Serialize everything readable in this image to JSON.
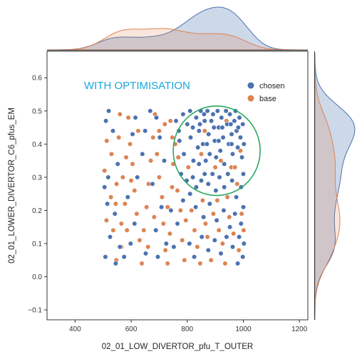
{
  "chart_data": {
    "type": "scatter",
    "xlabel": "02_01_LOW_DIVERTOR_pfu_T_OUTER",
    "ylabel": "02_01_LOWER_DIVERTOR_C6_pfus_EM",
    "xlim": [
      300,
      1230
    ],
    "ylim": [
      -0.13,
      0.68
    ],
    "xticks": [
      400,
      600,
      800,
      1000,
      1200
    ],
    "yticks": [
      -0.1,
      0.0,
      0.1,
      0.2,
      0.3,
      0.4,
      0.5,
      0.6
    ],
    "xtick_labels": [
      "400",
      "600",
      "800",
      "1000",
      "1200"
    ],
    "ytick_labels": [
      "−0.1",
      "0.0",
      "0.1",
      "0.2",
      "0.3",
      "0.4",
      "0.5",
      "0.6"
    ],
    "grid": false,
    "legend_position": "top-right",
    "annotation": {
      "text": "WITH OPTIMISATION",
      "color": "#1aa6dc"
    },
    "highlight_ellipse": {
      "cx": 905,
      "cy": 0.38,
      "rx": 155,
      "ry": 0.135,
      "color": "#2aa860"
    },
    "marginals": "kde",
    "series": [
      {
        "name": "chosen",
        "color": "#4c72b0",
        "points": [
          [
            520,
            0.5
          ],
          [
            510,
            0.47
          ],
          [
            535,
            0.44
          ],
          [
            505,
            0.27
          ],
          [
            518,
            0.3
          ],
          [
            552,
            0.34
          ],
          [
            515,
            0.22
          ],
          [
            542,
            0.19
          ],
          [
            525,
            0.12
          ],
          [
            560,
            0.09
          ],
          [
            508,
            0.06
          ],
          [
            545,
            0.04
          ],
          [
            575,
            0.06
          ],
          [
            598,
            0.1
          ],
          [
            612,
            0.16
          ],
          [
            588,
            0.24
          ],
          [
            622,
            0.3
          ],
          [
            640,
            0.37
          ],
          [
            650,
            0.44
          ],
          [
            605,
            0.43
          ],
          [
            668,
            0.5
          ],
          [
            690,
            0.48
          ],
          [
            702,
            0.42
          ],
          [
            718,
            0.35
          ],
          [
            676,
            0.28
          ],
          [
            708,
            0.21
          ],
          [
            742,
            0.2
          ],
          [
            688,
            0.14
          ],
          [
            725,
            0.1
          ],
          [
            652,
            0.07
          ],
          [
            695,
            0.06
          ],
          [
            752,
            0.09
          ],
          [
            765,
            0.16
          ],
          [
            785,
            0.23
          ],
          [
            778,
            0.31
          ],
          [
            760,
            0.47
          ],
          [
            772,
            0.41
          ],
          [
            788,
            0.37
          ],
          [
            800,
            0.46
          ],
          [
            810,
            0.5
          ],
          [
            812,
            0.42
          ],
          [
            822,
            0.35
          ],
          [
            832,
            0.48
          ],
          [
            842,
            0.44
          ],
          [
            848,
            0.5
          ],
          [
            856,
            0.4
          ],
          [
            862,
            0.47
          ],
          [
            872,
            0.5
          ],
          [
            876,
            0.43
          ],
          [
            880,
            0.37
          ],
          [
            886,
            0.47
          ],
          [
            892,
            0.49
          ],
          [
            898,
            0.41
          ],
          [
            903,
            0.36
          ],
          [
            908,
            0.5
          ],
          [
            912,
            0.45
          ],
          [
            918,
            0.38
          ],
          [
            922,
            0.48
          ],
          [
            928,
            0.42
          ],
          [
            932,
            0.34
          ],
          [
            938,
            0.5
          ],
          [
            942,
            0.46
          ],
          [
            948,
            0.4
          ],
          [
            952,
            0.49
          ],
          [
            958,
            0.43
          ],
          [
            962,
            0.37
          ],
          [
            968,
            0.47
          ],
          [
            972,
            0.5
          ],
          [
            976,
            0.44
          ],
          [
            980,
            0.39
          ],
          [
            986,
            0.48
          ],
          [
            990,
            0.42
          ],
          [
            995,
            0.36
          ],
          [
            998,
            0.46
          ],
          [
            1000,
            0.31
          ],
          [
            992,
            0.27
          ],
          [
            975,
            0.24
          ],
          [
            960,
            0.29
          ],
          [
            945,
            0.31
          ],
          [
            932,
            0.27
          ],
          [
            915,
            0.3
          ],
          [
            902,
            0.26
          ],
          [
            890,
            0.31
          ],
          [
            875,
            0.28
          ],
          [
            862,
            0.31
          ],
          [
            850,
            0.29
          ],
          [
            842,
            0.34
          ],
          [
            832,
            0.27
          ],
          [
            820,
            0.3
          ],
          [
            810,
            0.25
          ],
          [
            798,
            0.29
          ],
          [
            830,
            0.21
          ],
          [
            858,
            0.18
          ],
          [
            880,
            0.22
          ],
          [
            905,
            0.17
          ],
          [
            930,
            0.2
          ],
          [
            952,
            0.15
          ],
          [
            970,
            0.19
          ],
          [
            992,
            0.16
          ],
          [
            1000,
            0.21
          ],
          [
            985,
            0.12
          ],
          [
            962,
            0.09
          ],
          [
            940,
            0.12
          ],
          [
            920,
            0.07
          ],
          [
            898,
            0.11
          ],
          [
            875,
            0.08
          ],
          [
            852,
            0.12
          ],
          [
            825,
            0.06
          ],
          [
            808,
            0.1
          ],
          [
            998,
            0.06
          ],
          [
            980,
            0.04
          ],
          [
            1002,
            0.1
          ],
          [
            820,
            0.45
          ],
          [
            838,
            0.39
          ],
          [
            866,
            0.35
          ],
          [
            895,
            0.45
          ],
          [
            925,
            0.45
          ],
          [
            955,
            0.46
          ],
          [
            982,
            0.45
          ],
          [
            845,
            0.46
          ],
          [
            870,
            0.4
          ],
          [
            958,
            0.4
          ],
          [
            912,
            0.41
          ],
          [
            1002,
            0.4
          ],
          [
            860,
            0.49
          ],
          [
            785,
            0.49
          ],
          [
            770,
            0.44
          ],
          [
            615,
            0.48
          ]
        ]
      },
      {
        "name": "base",
        "color": "#dd8452",
        "points": [
          [
            513,
            0.41
          ],
          [
            530,
            0.37
          ],
          [
            505,
            0.32
          ],
          [
            548,
            0.28
          ],
          [
            512,
            0.17
          ],
          [
            528,
            0.24
          ],
          [
            536,
            0.14
          ],
          [
            547,
            0.05
          ],
          [
            565,
            0.16
          ],
          [
            578,
            0.22
          ],
          [
            570,
            0.3
          ],
          [
            582,
            0.36
          ],
          [
            556,
            0.42
          ],
          [
            590,
            0.48
          ],
          [
            596,
            0.4
          ],
          [
            605,
            0.34
          ],
          [
            612,
            0.26
          ],
          [
            620,
            0.19
          ],
          [
            630,
            0.11
          ],
          [
            638,
            0.04
          ],
          [
            645,
            0.14
          ],
          [
            655,
            0.21
          ],
          [
            662,
            0.28
          ],
          [
            670,
            0.35
          ],
          [
            678,
            0.42
          ],
          [
            685,
            0.49
          ],
          [
            692,
            0.37
          ],
          [
            700,
            0.3
          ],
          [
            710,
            0.24
          ],
          [
            715,
            0.16
          ],
          [
            722,
            0.08
          ],
          [
            730,
            0.04
          ],
          [
            738,
            0.13
          ],
          [
            746,
            0.27
          ],
          [
            750,
            0.34
          ],
          [
            757,
            0.4
          ],
          [
            768,
            0.36
          ],
          [
            776,
            0.2
          ],
          [
            782,
            0.11
          ],
          [
            790,
            0.05
          ],
          [
            795,
            0.17
          ],
          [
            804,
            0.33
          ],
          [
            815,
            0.2
          ],
          [
            826,
            0.14
          ],
          [
            836,
            0.09
          ],
          [
            846,
            0.04
          ],
          [
            855,
            0.23
          ],
          [
            865,
            0.16
          ],
          [
            872,
            0.12
          ],
          [
            885,
            0.05
          ],
          [
            893,
            0.19
          ],
          [
            900,
            0.33
          ],
          [
            907,
            0.23
          ],
          [
            913,
            0.14
          ],
          [
            926,
            0.1
          ],
          [
            935,
            0.04
          ],
          [
            943,
            0.24
          ],
          [
            950,
            0.18
          ],
          [
            957,
            0.33
          ],
          [
            965,
            0.13
          ],
          [
            978,
            0.28
          ],
          [
            984,
            0.08
          ],
          [
            994,
            0.19
          ],
          [
            1001,
            0.14
          ],
          [
            740,
            0.47
          ],
          [
            747,
            0.42
          ],
          [
            720,
            0.46
          ],
          [
            700,
            0.44
          ],
          [
            625,
            0.44
          ],
          [
            600,
            0.29
          ],
          [
            565,
            0.09
          ],
          [
            585,
            0.14
          ],
          [
            660,
            0.09
          ],
          [
            682,
            0.18
          ],
          [
            730,
            0.21
          ],
          [
            765,
            0.26
          ],
          [
            850,
            0.37
          ],
          [
            920,
            0.35
          ],
          [
            970,
            0.33
          ],
          [
            862,
            0.44
          ],
          [
            940,
            0.47
          ],
          [
            990,
            0.38
          ],
          [
            560,
            0.49
          ],
          [
            545,
            0.22
          ]
        ]
      }
    ]
  }
}
